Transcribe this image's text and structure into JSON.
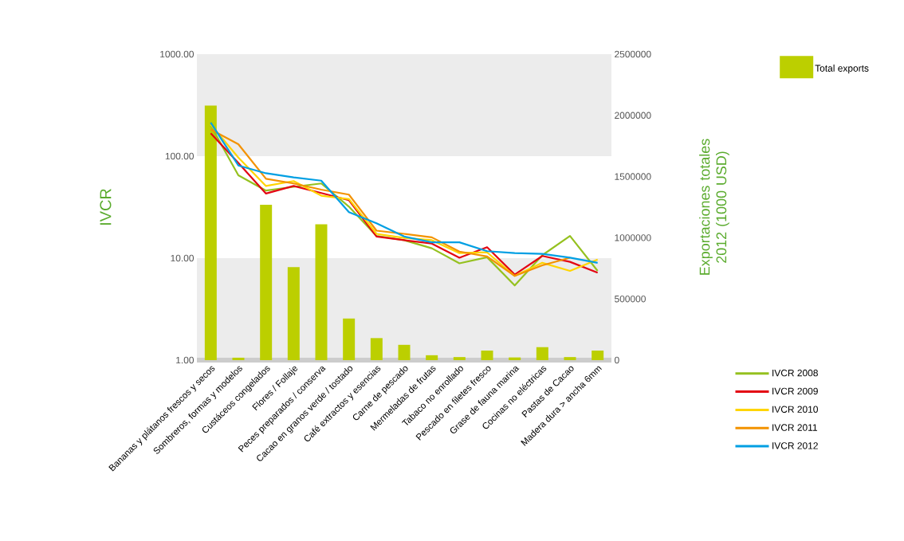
{
  "chart_data": {
    "type": "line",
    "ylabel": "IVCR",
    "y2label": "Exportaciones totales 2012 (1000 USD)",
    "categories": [
      "Bananas y plátanos frescos y secos",
      "Sombreros, formas y modelos",
      "Custáceos congelados",
      "Flores / Follaje",
      "Peces preparados / conserva",
      "Cacao en granos verde / tostado",
      "Café extractos y esencias",
      "Carne de pescado",
      "Mermeladas de frutas",
      "Tabaco no enrollado",
      "Pescado en filetes fresco",
      "Grase de fauna marina",
      "Cocinas no eléctricas",
      "Pastas de Cacao",
      "Madera dura > ancha 6mm"
    ],
    "series": [
      {
        "name": "Total exports",
        "type": "bar",
        "axis": "y2",
        "color": "#bccf00",
        "values": [
          2080000,
          20000,
          1270000,
          760000,
          1110000,
          340000,
          180000,
          125000,
          40000,
          25000,
          78000,
          22000,
          106000,
          25000,
          78000
        ]
      },
      {
        "name": "IVCR 2008",
        "color": "#95c11f",
        "values": [
          200,
          65,
          46,
          50,
          54,
          32,
          16.5,
          15,
          12.5,
          8.9,
          10.2,
          5.4,
          10.7,
          16.5,
          7.5
        ]
      },
      {
        "name": "IVCR 2009",
        "color": "#e30613",
        "values": [
          168,
          86,
          43,
          51,
          43.5,
          37,
          16.3,
          15,
          13.9,
          10.1,
          12.8,
          6.9,
          10.5,
          9.2,
          7.2
        ]
      },
      {
        "name": "IVCR 2010",
        "color": "#ffd500",
        "values": [
          204,
          97,
          51,
          57,
          41,
          38,
          17.3,
          15.8,
          15,
          11.2,
          11.4,
          6.7,
          9,
          7.5,
          9.7
        ]
      },
      {
        "name": "IVCR 2011",
        "color": "#f39200",
        "values": [
          183,
          131,
          60,
          54,
          47,
          42,
          18.6,
          17.3,
          16,
          11.6,
          10.4,
          6.7,
          8.5,
          10.1,
          null
        ]
      },
      {
        "name": "IVCR 2012",
        "color": "#009fe3",
        "values": [
          213,
          81,
          68,
          62,
          57.5,
          28.3,
          22,
          16.3,
          14.3,
          14.3,
          11.7,
          11.2,
          11,
          10.1,
          9
        ]
      }
    ],
    "log": "y",
    "ylim": [
      1,
      1000
    ],
    "yticks": [
      {
        "value": 1,
        "label": "1.00"
      },
      {
        "value": 10,
        "label": "10.00"
      },
      {
        "value": 100,
        "label": "100.00"
      },
      {
        "value": 1000,
        "label": "1000.00"
      }
    ],
    "y2lim": [
      0,
      2500000
    ],
    "y2ticks": [
      0,
      500000,
      1000000,
      1500000,
      2000000,
      2500000
    ],
    "bands": [
      {
        "axis": "y",
        "from": 100,
        "to": 1000,
        "color": "#ececec"
      },
      {
        "axis": "y",
        "from": 1,
        "to": 10,
        "color": "#ececec"
      }
    ],
    "legend": "right",
    "marker": "none",
    "line_style": "solid"
  }
}
